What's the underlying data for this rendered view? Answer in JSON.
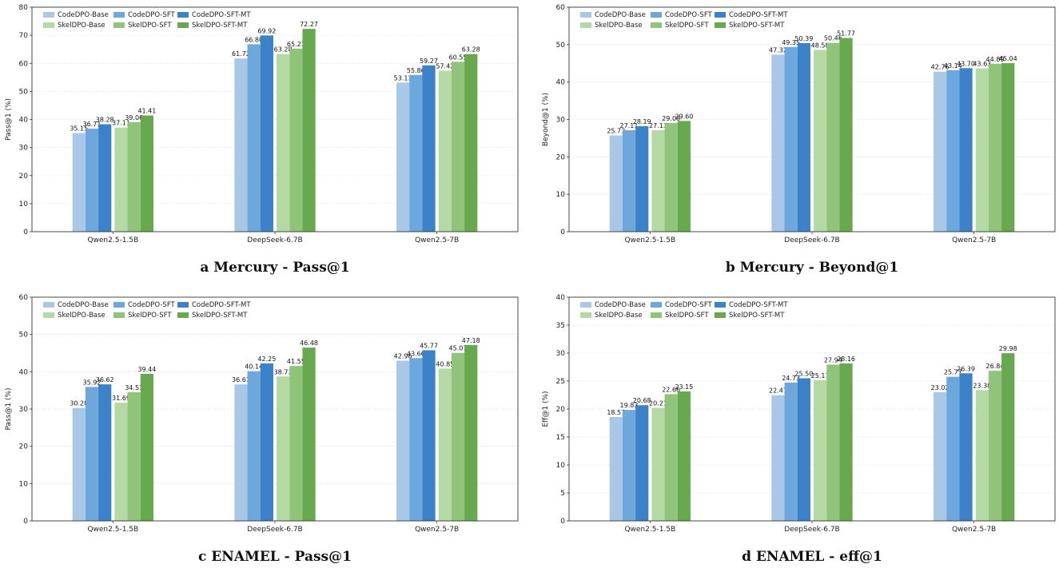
{
  "colors": {
    "CodeDPO-Base": "#a9c8e8",
    "CodeDPO-SFT": "#6ea7dc",
    "CodeDPO-SFT-MT": "#3c82c8",
    "SkelDPO-Base": "#b5d9a5",
    "SkelDPO-SFT": "#8fc47a",
    "SkelDPO-SFT-MT": "#68a84e"
  },
  "chart_data": [
    {
      "type": "bar",
      "title": "a Mercury - Pass@1",
      "xlabel": "",
      "ylabel": "Pass@1 (%)",
      "ylim": [
        0,
        80
      ],
      "yticks": [
        "0",
        "10",
        "20",
        "30",
        "40",
        "50",
        "60",
        "70",
        "80"
      ],
      "grid": true,
      "legend": "top-left",
      "categories": [
        "Qwen2.5-1.5B",
        "DeepSeek-6.7B",
        "Qwen2.5-7B"
      ],
      "series": [
        {
          "name": "CodeDPO-Base",
          "values": [
            35.15,
            61.72,
            53.13
          ],
          "labels": [
            "35.15",
            "61.72",
            "53.13"
          ]
        },
        {
          "name": "CodeDPO-SFT",
          "values": [
            36.71,
            66.8,
            55.86
          ],
          "labels": [
            "36.71",
            "66.80",
            "55.86"
          ]
        },
        {
          "name": "CodeDPO-SFT-MT",
          "values": [
            38.28,
            69.92,
            59.27
          ],
          "labels": [
            "38.28",
            "69.92",
            "59.27"
          ]
        },
        {
          "name": "SkelDPO-Base",
          "values": [
            37.11,
            63.28,
            57.42
          ],
          "labels": [
            "37.11",
            "63.28",
            "57.42"
          ]
        },
        {
          "name": "SkelDPO-SFT",
          "values": [
            39.06,
            65.23,
            60.55
          ],
          "labels": [
            "39.06",
            "65.23",
            "60.55"
          ]
        },
        {
          "name": "SkelDPO-SFT-MT",
          "values": [
            41.41,
            72.27,
            63.28
          ],
          "labels": [
            "41.41",
            "72.27",
            "63.28"
          ]
        }
      ]
    },
    {
      "type": "bar",
      "title": "b Mercury - Beyond@1",
      "xlabel": "",
      "ylabel": "Beyond@1 (%)",
      "ylim": [
        0,
        60
      ],
      "yticks": [
        "0",
        "10",
        "20",
        "30",
        "40",
        "50",
        "60"
      ],
      "grid": true,
      "legend": "top-left",
      "categories": [
        "Qwen2.5-1.5B",
        "DeepSeek-6.7B",
        "Qwen2.5-7B"
      ],
      "series": [
        {
          "name": "CodeDPO-Base",
          "values": [
            25.73,
            47.32,
            42.76
          ],
          "labels": [
            "25.73",
            "47.32",
            "42.76"
          ]
        },
        {
          "name": "CodeDPO-SFT",
          "values": [
            27.11,
            49.35,
            43.14
          ],
          "labels": [
            "27.11",
            "49.35",
            "43.14"
          ]
        },
        {
          "name": "CodeDPO-SFT-MT",
          "values": [
            28.19,
            50.39,
            43.7
          ],
          "labels": [
            "28.19",
            "50.39",
            "43.70"
          ]
        },
        {
          "name": "SkelDPO-Base",
          "values": [
            27.13,
            48.58,
            43.63
          ],
          "labels": [
            "27.13",
            "48.58",
            "43.63"
          ]
        },
        {
          "name": "SkelDPO-SFT",
          "values": [
            29.08,
            50.46,
            44.89
          ],
          "labels": [
            "29.08",
            "50.46",
            "44.89"
          ]
        },
        {
          "name": "SkelDPO-SFT-MT",
          "values": [
            29.6,
            51.77,
            45.04
          ],
          "labels": [
            "29.60",
            "51.77",
            "45.04"
          ]
        }
      ]
    },
    {
      "type": "bar",
      "title": "c ENAMEL - Pass@1",
      "xlabel": "",
      "ylabel": "Pass@1 (%)",
      "ylim": [
        0,
        60
      ],
      "yticks": [
        "0",
        "10",
        "20",
        "30",
        "40",
        "50",
        "60"
      ],
      "grid": true,
      "legend": "top-left",
      "categories": [
        "Qwen2.5-1.5B",
        "DeepSeek-6.7B",
        "Qwen2.5-7B"
      ],
      "series": [
        {
          "name": "CodeDPO-Base",
          "values": [
            30.28,
            36.61,
            42.96
          ],
          "labels": [
            "30.28",
            "36.61",
            "42.96"
          ]
        },
        {
          "name": "CodeDPO-SFT",
          "values": [
            35.92,
            40.14,
            43.66
          ],
          "labels": [
            "35.92",
            "40.14",
            "43.66"
          ]
        },
        {
          "name": "CodeDPO-SFT-MT",
          "values": [
            36.62,
            42.25,
            45.77
          ],
          "labels": [
            "36.62",
            "42.25",
            "45.77"
          ]
        },
        {
          "name": "SkelDPO-Base",
          "values": [
            31.69,
            38.73,
            40.85
          ],
          "labels": [
            "31.69",
            "38.73",
            "40.85"
          ]
        },
        {
          "name": "SkelDPO-SFT",
          "values": [
            34.51,
            41.55,
            45.07
          ],
          "labels": [
            "34.51",
            "41.55",
            "45.07"
          ]
        },
        {
          "name": "SkelDPO-SFT-MT",
          "values": [
            39.44,
            46.48,
            47.18
          ],
          "labels": [
            "39.44",
            "46.48",
            "47.18"
          ]
        }
      ]
    },
    {
      "type": "bar",
      "title": "d ENAMEL - eff@1",
      "xlabel": "",
      "ylabel": "Eff@1 (%)",
      "ylim": [
        0,
        40
      ],
      "yticks": [
        "0",
        "5",
        "10",
        "15",
        "20",
        "25",
        "30",
        "35",
        "40"
      ],
      "grid": true,
      "legend": "top-left",
      "categories": [
        "Qwen2.5-1.5B",
        "DeepSeek-6.7B",
        "Qwen2.5-7B"
      ],
      "series": [
        {
          "name": "CodeDPO-Base",
          "values": [
            18.57,
            22.47,
            23.02
          ],
          "labels": [
            "18.57",
            "22.47",
            "23.02"
          ]
        },
        {
          "name": "CodeDPO-SFT",
          "values": [
            19.83,
            24.73,
            25.77
          ],
          "labels": [
            "19.83",
            "24.73",
            "25.77"
          ]
        },
        {
          "name": "CodeDPO-SFT-MT",
          "values": [
            20.68,
            25.5,
            26.39
          ],
          "labels": [
            "20.68",
            "25.50",
            "26.39"
          ]
        },
        {
          "name": "SkelDPO-Base",
          "values": [
            20.21,
            25.17,
            23.38
          ],
          "labels": [
            "20.21",
            "25.17",
            "23.38"
          ]
        },
        {
          "name": "SkelDPO-SFT",
          "values": [
            22.66,
            27.94,
            26.84
          ],
          "labels": [
            "22.66",
            "27.94",
            "26.84"
          ]
        },
        {
          "name": "SkelDPO-SFT-MT",
          "values": [
            23.15,
            28.16,
            29.98
          ],
          "labels": [
            "23.15",
            "28.16",
            "29.98"
          ]
        }
      ]
    }
  ]
}
